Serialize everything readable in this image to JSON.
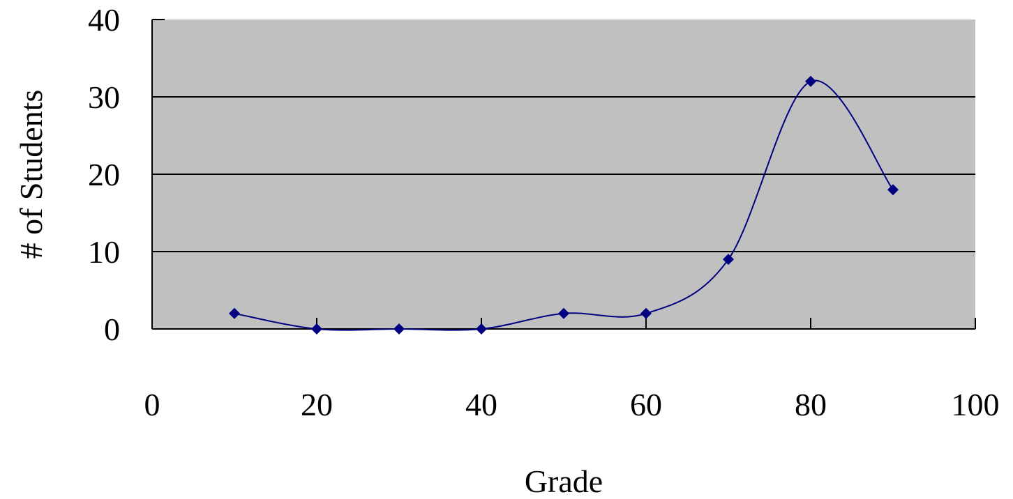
{
  "chart_data": {
    "type": "line",
    "smoothed": true,
    "title": "",
    "xlabel": "Grade",
    "ylabel": "# of Students",
    "xlim": [
      0,
      100
    ],
    "ylim": [
      0,
      40
    ],
    "xticks": [
      0,
      20,
      40,
      60,
      80,
      100
    ],
    "yticks": [
      0,
      10,
      20,
      30,
      40
    ],
    "grid": "horizontal",
    "legend": "none",
    "series": [
      {
        "x": [
          10,
          20,
          30,
          40,
          50,
          60,
          70,
          80,
          90
        ],
        "values": [
          2,
          0,
          0,
          0,
          2,
          2,
          9,
          32,
          18
        ]
      }
    ],
    "colors": {
      "plot_background": "#c0c0c0",
      "line": "#000080",
      "marker": "#000080",
      "gridline": "#000000"
    }
  }
}
